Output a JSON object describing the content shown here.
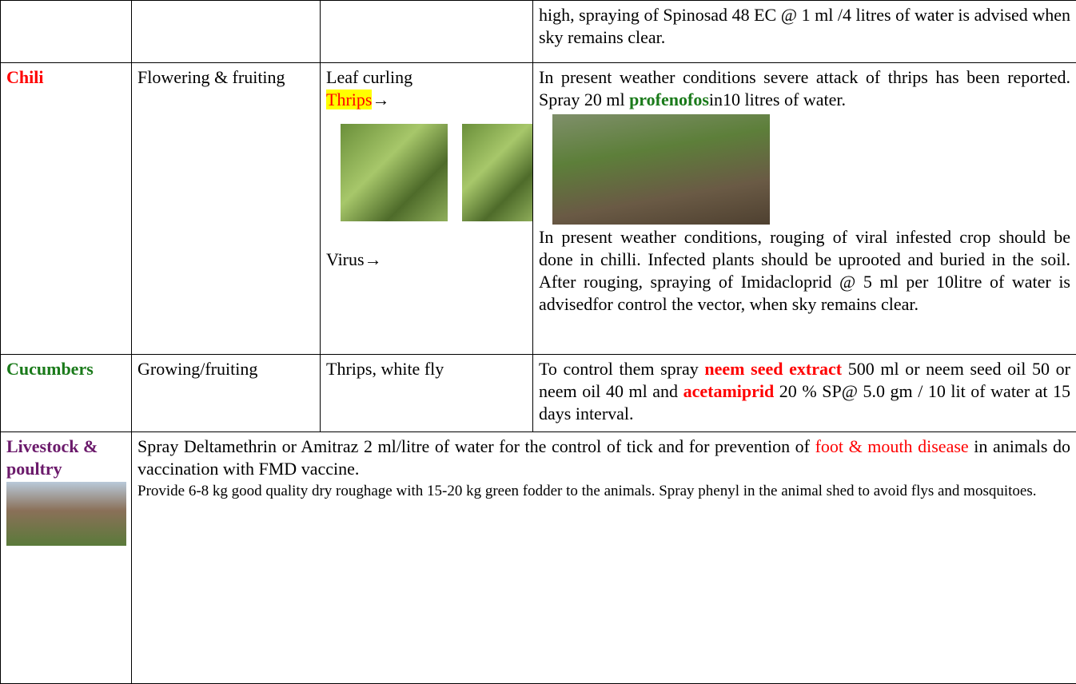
{
  "table": {
    "rows": [
      {
        "advisory": [
          "high, spraying of Spinosad 48 EC @ 1 ml /4 litres of water is advised when sky remains clear."
        ]
      },
      {
        "crop": "Chili",
        "stage": "Flowering & fruiting",
        "pest": [
          "Leaf curling",
          "Thrips",
          "→",
          "Virus→"
        ],
        "advisory": [
          [
            "In present weather conditions severe attack of thrips has been reported. Spray 20 ml ",
            "profenofos",
            "in10 litres of water."
          ],
          [
            "In present weather conditions, rouging of viral infested crop should be done in chilli. Infected plants should be uprooted and buried in the soil. After rouging, spraying of Imidacloprid @ 5 ml per  10litre of water is advisedfor control the vector, when sky remains clear."
          ]
        ]
      },
      {
        "crop": "Cucumbers",
        "stage": "Growing/fruiting",
        "pest": "Thrips, white fly",
        "advisory": [
          "To control them spray ",
          "neem seed extract",
          " 500 ml or neem seed oil 50 or neem oil 40 ml and ",
          "acetamiprid",
          " 20 % SP@ 5.0 gm / 10 lit of water at 15 days interval."
        ]
      },
      {
        "crop": "Livestock & poultry",
        "advisory": [
          [
            "Spray Deltamethrin or Amitraz 2 ml/litre of water for the control of tick and for prevention of ",
            "foot & mouth disease",
            " in animals do vaccination with  FMD vaccine."
          ],
          [
            "Provide 6-8 kg good quality dry roughage with 15-20 kg green fodder to the animals. Spray phenyl in the animal shed to avoid flys and mosquitoes."
          ]
        ]
      }
    ]
  }
}
